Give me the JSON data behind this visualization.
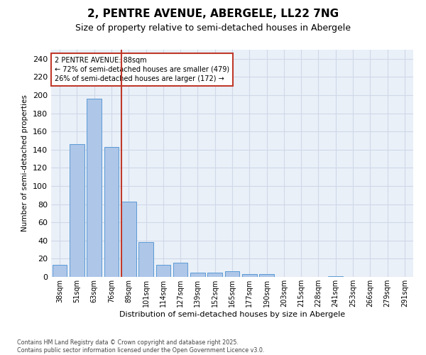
{
  "title1": "2, PENTRE AVENUE, ABERGELE, LL22 7NG",
  "title2": "Size of property relative to semi-detached houses in Abergele",
  "xlabel": "Distribution of semi-detached houses by size in Abergele",
  "ylabel": "Number of semi-detached properties",
  "categories": [
    "38sqm",
    "51sqm",
    "63sqm",
    "76sqm",
    "89sqm",
    "101sqm",
    "114sqm",
    "127sqm",
    "139sqm",
    "152sqm",
    "165sqm",
    "177sqm",
    "190sqm",
    "203sqm",
    "215sqm",
    "228sqm",
    "241sqm",
    "253sqm",
    "266sqm",
    "279sqm",
    "291sqm"
  ],
  "values": [
    13,
    146,
    196,
    143,
    83,
    38,
    13,
    16,
    5,
    5,
    6,
    3,
    3,
    0,
    0,
    0,
    1,
    0,
    0,
    0,
    0
  ],
  "bar_color": "#aec6e8",
  "bar_edge_color": "#5b9bd5",
  "vline_index": 4,
  "vline_color": "#c0392b",
  "annotation_text": "2 PENTRE AVENUE: 88sqm\n← 72% of semi-detached houses are smaller (479)\n26% of semi-detached houses are larger (172) →",
  "annotation_box_color": "#c0392b",
  "ylim": [
    0,
    250
  ],
  "yticks": [
    0,
    20,
    40,
    60,
    80,
    100,
    120,
    140,
    160,
    180,
    200,
    220,
    240
  ],
  "grid_color": "#d0d8e8",
  "bg_color": "#eaf0f8",
  "footer_text": "Contains HM Land Registry data © Crown copyright and database right 2025.\nContains public sector information licensed under the Open Government Licence v3.0.",
  "title_fontsize": 11,
  "subtitle_fontsize": 9
}
